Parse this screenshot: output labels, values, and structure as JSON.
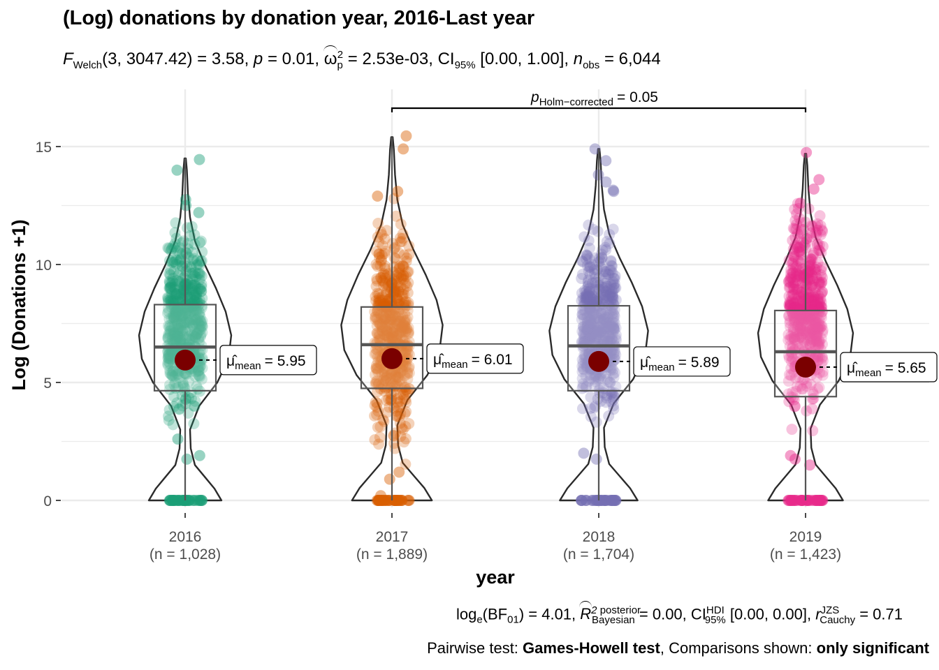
{
  "title": "(Log) donations by donation year, 2016-Last year",
  "subtitle": {
    "welch_label": "Welch",
    "welch_args": "(3, 3047.42)",
    "stat_value": "3.58",
    "p_value": "0.01",
    "omega_value": "2.53e-03",
    "ci_label": "95%",
    "ci_value": "[0.00, 1.00]",
    "n_label": "obs",
    "n_value": "6,044"
  },
  "pairwise_label": {
    "sub": "Holm−corrected",
    "value": "= 0.05"
  },
  "caption": {
    "bf_text": "= 4.01,",
    "r2_sup": "posterior",
    "r2_sub": "Bayesian",
    "r2_value": "= 0.00, CI",
    "ci_sup": "HDI",
    "ci_sub": "95%",
    "ci_value": "[0.00, 0.00],",
    "r_sup": "JZS",
    "r_sub": "Cauchy",
    "r_value": "= 0.71",
    "pairwise_prefix": "Pairwise test: ",
    "pairwise_test": "Games-Howell test",
    "comparisons_prefix": ", Comparisons shown: ",
    "comparisons_value": "only significant"
  },
  "chart_data": {
    "type": "violin",
    "xlabel": "year",
    "ylabel": "Log (Donations +1)",
    "ylim": [
      0,
      17
    ],
    "yticks": [
      0,
      5,
      10,
      15
    ],
    "categories": [
      "2016",
      "2017",
      "2018",
      "2019"
    ],
    "n_labels": [
      "(n = 1,028)",
      "(n = 1,889)",
      "(n = 1,704)",
      "(n = 1,423)"
    ],
    "colors": [
      "#1B9E77",
      "#D95F02",
      "#7570B3",
      "#E7298A"
    ],
    "box": [
      {
        "q1": 4.65,
        "median": 6.5,
        "q3": 8.3,
        "whisker_low": 0,
        "whisker_high": 14.5
      },
      {
        "q1": 4.75,
        "median": 6.6,
        "q3": 8.2,
        "whisker_low": 0,
        "whisker_high": 15.4
      },
      {
        "q1": 4.65,
        "median": 6.55,
        "q3": 8.25,
        "whisker_low": 0,
        "whisker_high": 14.9
      },
      {
        "q1": 4.4,
        "median": 6.3,
        "q3": 8.05,
        "whisker_low": 0,
        "whisker_high": 14.7
      }
    ],
    "means": [
      5.95,
      6.01,
      5.89,
      5.65
    ],
    "mean_labels": [
      "= 5.95",
      "= 6.01",
      "= 5.89",
      "= 5.65"
    ],
    "point_range": [
      [
        1.7,
        12.8
      ],
      [
        0.2,
        13.1
      ],
      [
        1.75,
        12.3
      ],
      [
        1.4,
        13.6
      ]
    ],
    "outlier_points": [
      [
        14.45,
        14.0,
        12.75,
        12.5,
        12.2,
        1.9,
        1.75,
        2.6
      ],
      [
        15.45,
        14.9,
        13.1,
        12.9,
        0.2,
        0.9,
        1.2
      ],
      [
        14.9,
        14.4,
        13.8,
        13.5,
        13.15,
        13.1,
        1.75,
        2.0
      ],
      [
        14.75,
        13.6,
        13.2,
        12.6,
        1.9,
        1.75,
        1.5
      ]
    ],
    "significant_pair": [
      "2017",
      "2019"
    ],
    "grid": true
  }
}
